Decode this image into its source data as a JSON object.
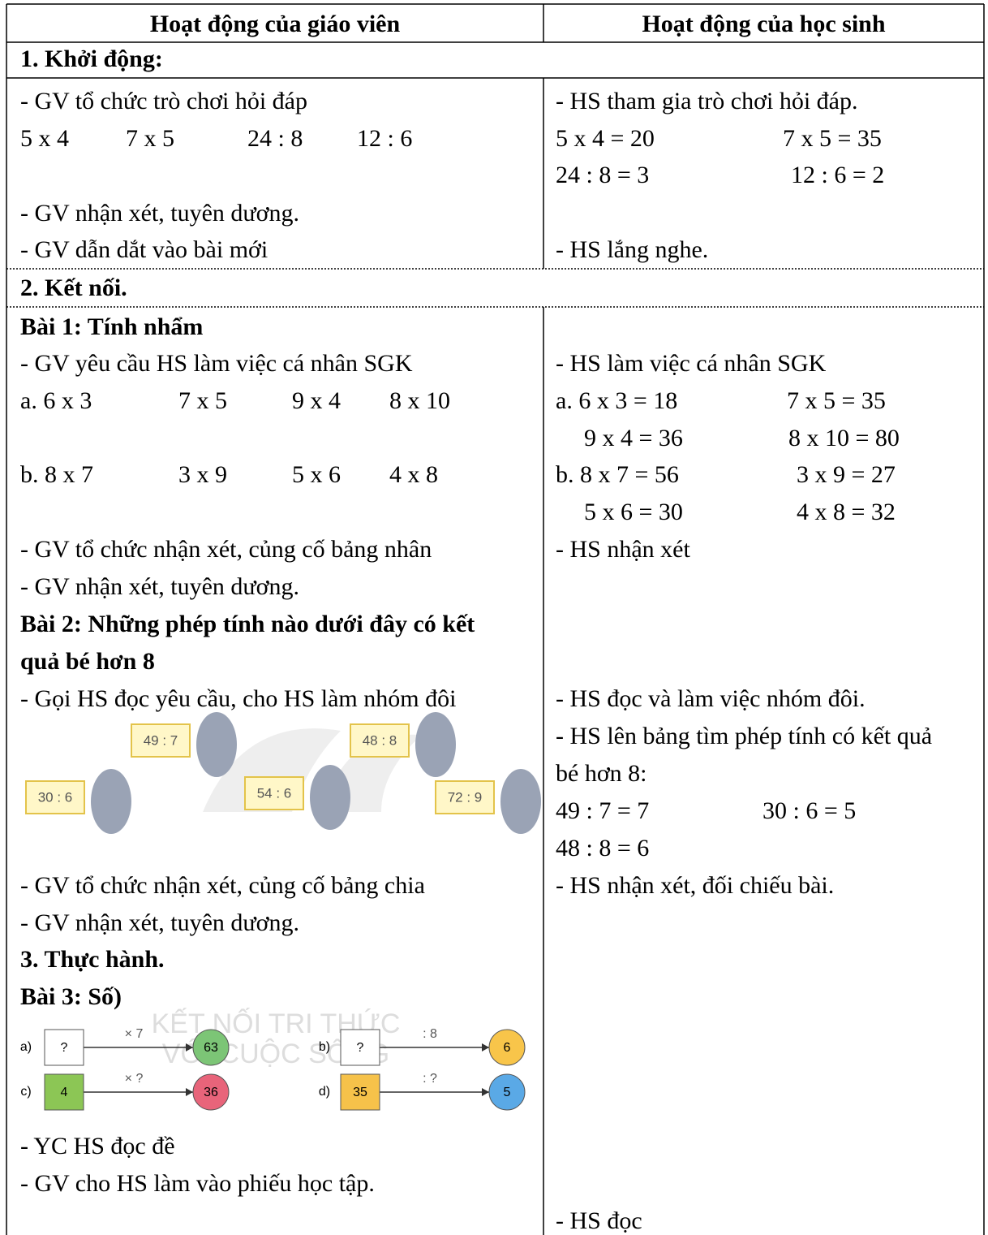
{
  "header": {
    "teacher": "Hoạt động của giáo viên",
    "student": "Hoạt động của học sinh"
  },
  "section1": {
    "title": "1. Khởi động:",
    "teacher": [
      "- GV tổ chức trò chơi hỏi đáp",
      "5 x 4",
      "7 x 5",
      "24 : 8",
      "12 : 6",
      "- GV nhận xét, tuyên dương.",
      "- GV dẫn dắt vào bài mới"
    ],
    "student": [
      "- HS tham gia trò chơi hỏi đáp.",
      "5 x 4 = 20",
      "7 x 5 = 35",
      "24 : 8 = 3",
      "12 : 6 = 2",
      "- HS lắng nghe."
    ]
  },
  "section2": {
    "title": "2. Kết nối.",
    "exercise1": {
      "title": "Bài 1: Tính nhẩm",
      "teacher": [
        "- GV yêu cầu HS làm việc cá nhân SGK",
        "a. 6 x 3",
        "7 x 5",
        "9 x 4",
        "8 x 10",
        "b. 8 x 7",
        "3 x 9",
        "5 x 6",
        "4 x 8",
        "- GV tổ chức nhận xét, củng cố bảng nhân",
        "- GV nhận xét, tuyên dương."
      ],
      "student": [
        "- HS làm việc cá nhân SGK",
        "a. 6 x 3 = 18",
        "7 x 5 = 35",
        "9 x 4 = 36",
        "8 x 10 = 80",
        "b. 8 x 7 = 56",
        "3 x 9 = 27",
        "5 x 6 = 30",
        "4 x 8 = 32",
        "- HS nhận xét"
      ]
    },
    "exercise2": {
      "title_lines": [
        "Bài 2: Những phép tính nào dưới đây có kết",
        "quả bé hơn 8"
      ],
      "teacher": [
        "- Gọi HS đọc yêu cầu, cho HS làm nhóm đôi",
        "- GV tổ chức nhận xét, củng cố bảng chia",
        "- GV nhận xét, tuyên dương."
      ],
      "figure_cards": [
        "49 : 7",
        "48 : 8",
        "30 : 6",
        "54 : 6",
        "72 : 9"
      ],
      "student": [
        "- HS đọc và làm việc nhóm đôi.",
        "- HS lên bảng tìm phép tính có kết quả",
        "bé hơn 8:",
        "49 : 7 = 7",
        "30 : 6 = 5",
        "48 : 8 = 6",
        "- HS nhận xét, đối chiếu bài."
      ]
    }
  },
  "section3": {
    "title": "3. Thực hành.",
    "exercise3": {
      "title": "Bài 3: Số)",
      "figure": {
        "watermark": [
          "KẾT NỐI TRI THỨC",
          "VỚI CUỘC SỐNG"
        ],
        "parts": [
          {
            "label": "a)",
            "input": "?",
            "operation": "× 7",
            "output": "63"
          },
          {
            "label": "b)",
            "input": "?",
            "operation": ": 8",
            "output": "6"
          },
          {
            "label": "c)",
            "input": "4",
            "operation": "× ?",
            "output": "36"
          },
          {
            "label": "d)",
            "input": "35",
            "operation": ": ?",
            "output": "5"
          }
        ]
      },
      "teacher": [
        "- YC HS đọc đề",
        "- GV cho HS làm vào phiếu học tập."
      ],
      "student": [
        "- HS đọc"
      ]
    }
  }
}
